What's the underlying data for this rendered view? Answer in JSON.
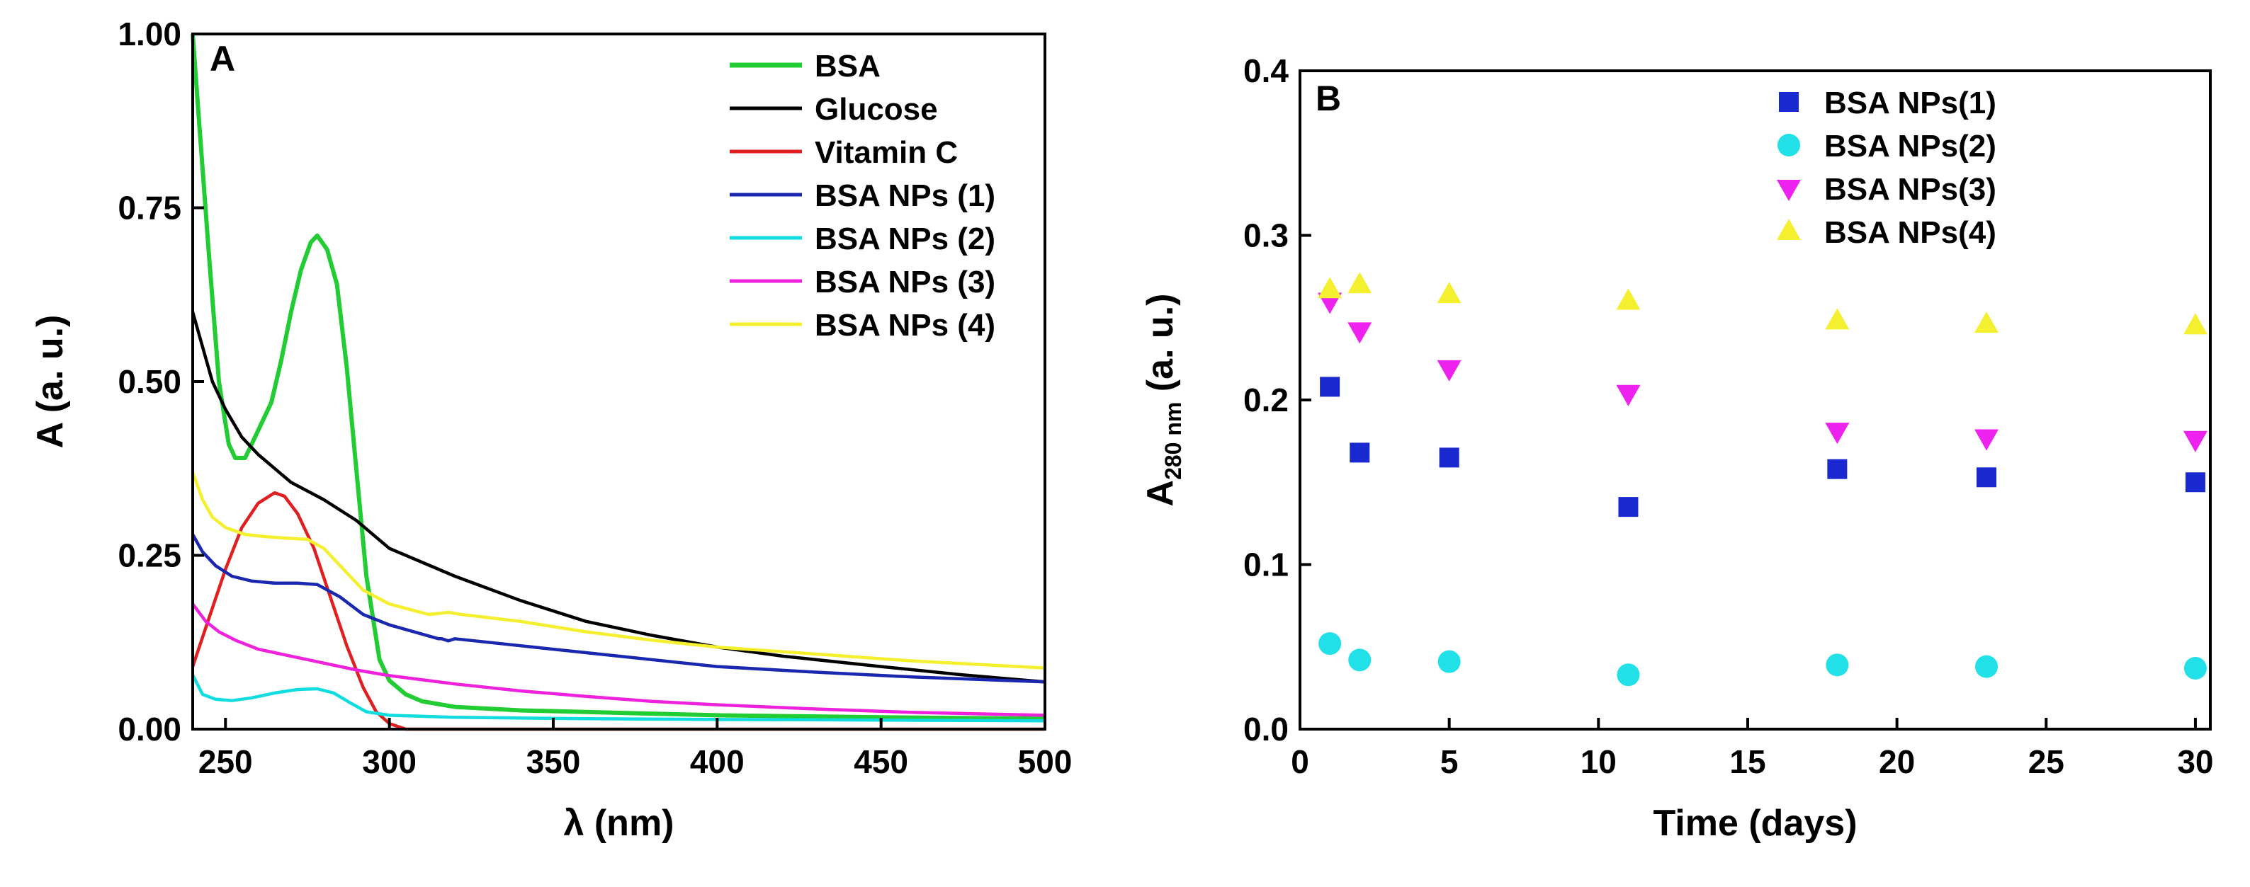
{
  "chart_data": [
    {
      "type": "line",
      "panel_label": "A",
      "xlabel": "λ (nm)",
      "ylabel": "A (a. u.)",
      "xlim": [
        240,
        500
      ],
      "ylim": [
        0,
        1
      ],
      "xticks": [
        250,
        300,
        350,
        400,
        450,
        500
      ],
      "xtick_labels": [
        "250",
        "300",
        "350",
        "400",
        "450",
        "500"
      ],
      "yticks": [
        0,
        0.25,
        0.5,
        0.75,
        1.0
      ],
      "ytick_labels": [
        "0.00",
        "0.25",
        "0.50",
        "0.75",
        "1.00"
      ],
      "legend_position": "top-right",
      "series": [
        {
          "name": "BSA",
          "color": "#22cc33",
          "points": [
            [
              240,
              1.0
            ],
            [
              242,
              0.87
            ],
            [
              245,
              0.68
            ],
            [
              248,
              0.5
            ],
            [
              251,
              0.41
            ],
            [
              253,
              0.39
            ],
            [
              256,
              0.39
            ],
            [
              258,
              0.41
            ],
            [
              261,
              0.44
            ],
            [
              264,
              0.47
            ],
            [
              267,
              0.53
            ],
            [
              270,
              0.6
            ],
            [
              273,
              0.66
            ],
            [
              276,
              0.7
            ],
            [
              278,
              0.71
            ],
            [
              281,
              0.69
            ],
            [
              284,
              0.64
            ],
            [
              287,
              0.52
            ],
            [
              290,
              0.37
            ],
            [
              293,
              0.22
            ],
            [
              297,
              0.1
            ],
            [
              300,
              0.07
            ],
            [
              305,
              0.05
            ],
            [
              310,
              0.04
            ],
            [
              320,
              0.032
            ],
            [
              340,
              0.027
            ],
            [
              400,
              0.02
            ],
            [
              450,
              0.017
            ],
            [
              500,
              0.015
            ]
          ]
        },
        {
          "name": "Glucose",
          "color": "#000000",
          "points": [
            [
              240,
              0.6
            ],
            [
              243,
              0.55
            ],
            [
              246,
              0.5
            ],
            [
              250,
              0.46
            ],
            [
              255,
              0.42
            ],
            [
              260,
              0.395
            ],
            [
              265,
              0.375
            ],
            [
              270,
              0.355
            ],
            [
              280,
              0.33
            ],
            [
              290,
              0.3
            ],
            [
              300,
              0.26
            ],
            [
              320,
              0.22
            ],
            [
              340,
              0.185
            ],
            [
              360,
              0.155
            ],
            [
              380,
              0.135
            ],
            [
              400,
              0.118
            ],
            [
              420,
              0.105
            ],
            [
              450,
              0.09
            ],
            [
              475,
              0.078
            ],
            [
              500,
              0.068
            ]
          ]
        },
        {
          "name": "Vitamin C",
          "color": "#e02020",
          "points": [
            [
              240,
              0.09
            ],
            [
              245,
              0.16
            ],
            [
              250,
              0.23
            ],
            [
              255,
              0.29
            ],
            [
              260,
              0.325
            ],
            [
              265,
              0.34
            ],
            [
              268,
              0.335
            ],
            [
              272,
              0.31
            ],
            [
              277,
              0.26
            ],
            [
              282,
              0.19
            ],
            [
              287,
              0.12
            ],
            [
              292,
              0.06
            ],
            [
              296,
              0.025
            ],
            [
              300,
              0.008
            ],
            [
              305,
              0.0
            ],
            [
              500,
              0.0
            ]
          ]
        },
        {
          "name": "BSA NPs (1)",
          "color": "#1a28b0",
          "points": [
            [
              240,
              0.28
            ],
            [
              243,
              0.255
            ],
            [
              247,
              0.235
            ],
            [
              252,
              0.22
            ],
            [
              258,
              0.213
            ],
            [
              265,
              0.21
            ],
            [
              272,
              0.21
            ],
            [
              278,
              0.208
            ],
            [
              285,
              0.19
            ],
            [
              292,
              0.165
            ],
            [
              300,
              0.15
            ],
            [
              315,
              0.13
            ],
            [
              316,
              0.13
            ],
            [
              318,
              0.127
            ],
            [
              320,
              0.13
            ],
            [
              340,
              0.12
            ],
            [
              360,
              0.11
            ],
            [
              380,
              0.1
            ],
            [
              400,
              0.09
            ],
            [
              430,
              0.082
            ],
            [
              460,
              0.075
            ],
            [
              500,
              0.068
            ]
          ]
        },
        {
          "name": "BSA NPs (2)",
          "color": "#11dde0",
          "points": [
            [
              240,
              0.078
            ],
            [
              243,
              0.05
            ],
            [
              247,
              0.043
            ],
            [
              252,
              0.041
            ],
            [
              258,
              0.045
            ],
            [
              265,
              0.052
            ],
            [
              272,
              0.057
            ],
            [
              278,
              0.058
            ],
            [
              283,
              0.052
            ],
            [
              288,
              0.038
            ],
            [
              293,
              0.025
            ],
            [
              300,
              0.02
            ],
            [
              320,
              0.017
            ],
            [
              360,
              0.015
            ],
            [
              400,
              0.014
            ],
            [
              450,
              0.013
            ],
            [
              500,
              0.012
            ]
          ]
        },
        {
          "name": "BSA NPs (3)",
          "color": "#ee22dd",
          "points": [
            [
              240,
              0.18
            ],
            [
              244,
              0.155
            ],
            [
              248,
              0.14
            ],
            [
              253,
              0.128
            ],
            [
              260,
              0.115
            ],
            [
              270,
              0.105
            ],
            [
              280,
              0.095
            ],
            [
              290,
              0.085
            ],
            [
              300,
              0.077
            ],
            [
              320,
              0.065
            ],
            [
              340,
              0.055
            ],
            [
              360,
              0.047
            ],
            [
              380,
              0.04
            ],
            [
              400,
              0.035
            ],
            [
              430,
              0.029
            ],
            [
              460,
              0.024
            ],
            [
              500,
              0.02
            ]
          ]
        },
        {
          "name": "BSA NPs (4)",
          "color": "#f4f030",
          "points": [
            [
              240,
              0.37
            ],
            [
              243,
              0.33
            ],
            [
              246,
              0.305
            ],
            [
              250,
              0.29
            ],
            [
              256,
              0.28
            ],
            [
              262,
              0.277
            ],
            [
              268,
              0.275
            ],
            [
              275,
              0.273
            ],
            [
              280,
              0.26
            ],
            [
              286,
              0.23
            ],
            [
              292,
              0.2
            ],
            [
              300,
              0.18
            ],
            [
              312,
              0.165
            ],
            [
              318,
              0.168
            ],
            [
              322,
              0.165
            ],
            [
              340,
              0.155
            ],
            [
              360,
              0.14
            ],
            [
              380,
              0.128
            ],
            [
              400,
              0.118
            ],
            [
              430,
              0.108
            ],
            [
              460,
              0.098
            ],
            [
              500,
              0.088
            ]
          ]
        }
      ]
    },
    {
      "type": "scatter",
      "panel_label": "B",
      "xlabel": "Time (days)",
      "ylabel_main": "A",
      "ylabel_sub": "280 nm",
      "ylabel_rest": " (a. u.)",
      "xlim": [
        0,
        30.5
      ],
      "ylim": [
        0,
        0.4
      ],
      "xticks": [
        0,
        5,
        10,
        15,
        20,
        25,
        30
      ],
      "xtick_labels": [
        "0",
        "5",
        "10",
        "15",
        "20",
        "25",
        "30"
      ],
      "yticks": [
        0,
        0.1,
        0.2,
        0.3,
        0.4
      ],
      "ytick_labels": [
        "0.0",
        "0.1",
        "0.2",
        "0.3",
        "0.4"
      ],
      "legend_position": "top-right",
      "x": [
        1,
        2,
        5,
        11,
        18,
        23,
        30
      ],
      "series": [
        {
          "name": "BSA NPs(1)",
          "color": "#1a28d0",
          "marker": "square",
          "values": [
            0.208,
            0.168,
            0.165,
            0.135,
            0.158,
            0.153,
            0.15
          ]
        },
        {
          "name": "BSA NPs(2)",
          "color": "#22e0e8",
          "marker": "circle",
          "values": [
            0.052,
            0.042,
            0.041,
            0.033,
            0.039,
            0.038,
            0.037
          ]
        },
        {
          "name": "BSA NPs(3)",
          "color": "#ee22ee",
          "marker": "triangle-down",
          "values": [
            0.26,
            0.242,
            0.219,
            0.204,
            0.181,
            0.177,
            0.176
          ]
        },
        {
          "name": "BSA NPs(4)",
          "color": "#f4f030",
          "marker": "triangle-up",
          "values": [
            0.267,
            0.27,
            0.264,
            0.26,
            0.248,
            0.246,
            0.245
          ]
        }
      ]
    }
  ]
}
